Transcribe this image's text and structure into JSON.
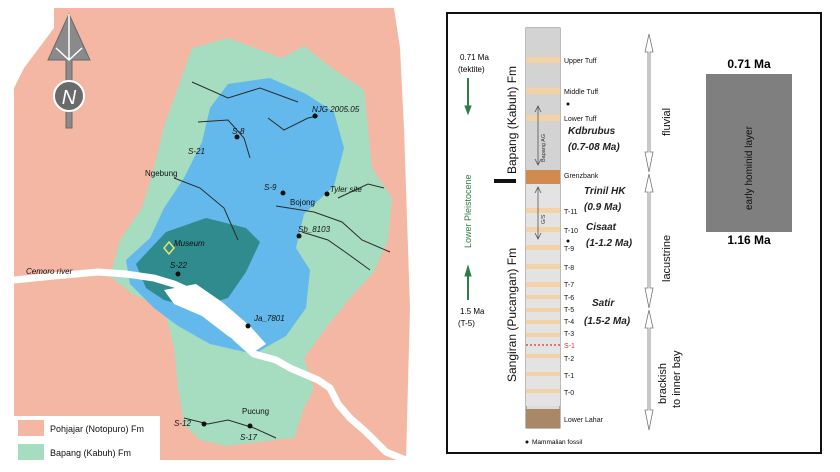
{
  "colors": {
    "pohjajar": "#f3b7a4",
    "bapang": "#a6dcc0",
    "sangiran": "#64b9ec",
    "dome_dark": "#2f8b8d",
    "river": "#ffffff",
    "hominid_box": "#7f7f7f"
  },
  "map": {
    "north_letter": "N",
    "labels": {
      "ngj": "NJG 2005.05",
      "s8": "S-8",
      "s21": "S-21",
      "ngebung": "Ngebung",
      "s9": "S-9",
      "bojong": "Bojong",
      "tyler": "Tyler site",
      "sb": "Sb_8103",
      "museum": "Museum",
      "cemoro": "Cemoro river",
      "s22": "S-22",
      "ja": "Ja_7801",
      "pucung": "Pucung",
      "s12": "S-12",
      "s17": "S-17"
    },
    "legend": [
      {
        "label": "Pohjajar (Notopuro)  Fm",
        "color": "#f3b7a4"
      },
      {
        "label": "Bapang (Kabuh) Fm",
        "color": "#a6dcc0"
      }
    ]
  },
  "strat": {
    "age_top": "0.71 Ma",
    "age_top_sub": "(tektite)",
    "age_bottom": "1.5 Ma",
    "age_bottom_sub": "(T-5)",
    "epoch": "Lower Pleistocene",
    "fm_upper": "Bapang (Kabuh) Fm",
    "fm_lower": "Sangiran (Pucangan) Fm",
    "layers": [
      "Upper Tuff",
      "Middle Tuff",
      "Lower Tuff",
      "Grenzbank",
      "T-11",
      "T-10",
      "T-9",
      "T-8",
      "T-7",
      "T-6",
      "T-5",
      "T-4",
      "T-3",
      "S-1",
      "T-2",
      "T-1",
      "T-0",
      "Lower Lahar"
    ],
    "inner_bapang": "Bapang AG",
    "inner_gs": "G/S",
    "faunas": [
      {
        "name": "Kdbrubus",
        "age": "(0.7-08 Ma)"
      },
      {
        "name": "Trinil HK",
        "age": "(0.9 Ma)"
      },
      {
        "name": "Cisaat",
        "age": "(1-1.2 Ma)"
      },
      {
        "name": "Satir",
        "age": "(1.5-2 Ma)"
      }
    ],
    "environments": [
      "fluvial",
      "lacustrine",
      "brackish",
      "to inner bay"
    ],
    "footnote": "Mammalian fossil",
    "hominid": {
      "label": "early hominid layer",
      "top": "0.71 Ma",
      "bottom": "1.16 Ma"
    }
  }
}
